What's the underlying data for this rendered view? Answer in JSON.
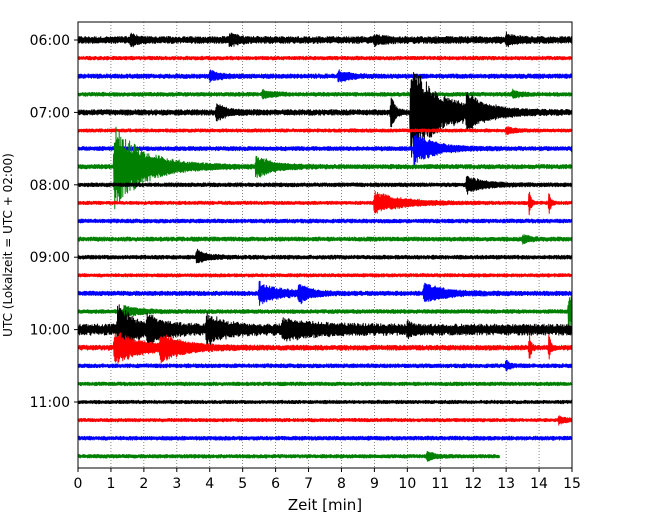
{
  "chart_data": {
    "type": "line",
    "title": "",
    "xlabel": "Zeit  [min]",
    "ylabel": "UTC (Lokalzeit = UTC + 02:00)",
    "xlim": [
      0,
      15
    ],
    "x_ticks": [
      "0",
      "1",
      "2",
      "3",
      "4",
      "5",
      "6",
      "7",
      "8",
      "9",
      "10",
      "11",
      "12",
      "13",
      "14",
      "15"
    ],
    "y_ticks": [
      "06:00",
      "07:00",
      "08:00",
      "09:00",
      "10:00",
      "11:00"
    ],
    "grid": "vertical dotted at each minute",
    "trace_interval_min": 15,
    "start_time": "06:00",
    "series_colors": [
      "#000000",
      "#ff0000",
      "#0000ff",
      "#008000"
    ],
    "traces": [
      {
        "row": 0,
        "color": "#000000",
        "end_min": 15,
        "base": 2.5,
        "events": [
          {
            "t": 1.6,
            "a": 6,
            "d": 0.2
          },
          {
            "t": 4.6,
            "a": 5,
            "d": 0.3
          },
          {
            "t": 9.0,
            "a": 4,
            "d": 0.3
          },
          {
            "t": 13.0,
            "a": 5,
            "d": 0.3
          }
        ]
      },
      {
        "row": 1,
        "color": "#ff0000",
        "end_min": 15,
        "base": 1.3,
        "events": []
      },
      {
        "row": 2,
        "color": "#0000ff",
        "end_min": 15,
        "base": 1.6,
        "events": [
          {
            "t": 4.0,
            "a": 5,
            "d": 0.3
          },
          {
            "t": 7.9,
            "a": 6,
            "d": 0.3
          }
        ]
      },
      {
        "row": 3,
        "color": "#008000",
        "end_min": 15,
        "base": 1.4,
        "events": [
          {
            "t": 5.6,
            "a": 4,
            "d": 0.3
          },
          {
            "t": 13.2,
            "a": 4,
            "d": 0.2
          }
        ]
      },
      {
        "row": 4,
        "color": "#000000",
        "end_min": 15,
        "base": 2.0,
        "events": [
          {
            "t": 4.2,
            "a": 8,
            "d": 0.3
          },
          {
            "t": 9.5,
            "a": 20,
            "d": 0.1
          },
          {
            "t": 10.1,
            "a": 48,
            "d": 0.9
          },
          {
            "t": 11.8,
            "a": 14,
            "d": 0.5
          }
        ]
      },
      {
        "row": 5,
        "color": "#ff0000",
        "end_min": 15,
        "base": 1.2,
        "events": [
          {
            "t": 13.0,
            "a": 4,
            "d": 0.2
          }
        ]
      },
      {
        "row": 6,
        "color": "#0000ff",
        "end_min": 15,
        "base": 1.5,
        "events": [
          {
            "t": 10.2,
            "a": 16,
            "d": 0.6
          },
          {
            "t": 15.0,
            "a": 5,
            "d": 0.2
          }
        ]
      },
      {
        "row": 7,
        "color": "#008000",
        "end_min": 15,
        "base": 1.6,
        "events": [
          {
            "t": 1.1,
            "a": 42,
            "d": 0.9
          },
          {
            "t": 5.4,
            "a": 11,
            "d": 0.5
          }
        ]
      },
      {
        "row": 8,
        "color": "#000000",
        "end_min": 15,
        "base": 1.4,
        "events": [
          {
            "t": 11.8,
            "a": 9,
            "d": 0.5
          }
        ]
      },
      {
        "row": 9,
        "color": "#ff0000",
        "end_min": 15,
        "base": 1.2,
        "events": [
          {
            "t": 9.0,
            "a": 11,
            "d": 0.8
          },
          {
            "t": 13.7,
            "a": 16,
            "d": 0.05
          },
          {
            "t": 14.3,
            "a": 14,
            "d": 0.05
          }
        ]
      },
      {
        "row": 10,
        "color": "#0000ff",
        "end_min": 15,
        "base": 1.4,
        "events": []
      },
      {
        "row": 11,
        "color": "#008000",
        "end_min": 15,
        "base": 1.5,
        "events": [
          {
            "t": 13.5,
            "a": 4,
            "d": 0.2
          }
        ]
      },
      {
        "row": 12,
        "color": "#000000",
        "end_min": 15,
        "base": 1.4,
        "events": [
          {
            "t": 3.6,
            "a": 7,
            "d": 0.3
          }
        ]
      },
      {
        "row": 13,
        "color": "#ff0000",
        "end_min": 15,
        "base": 1.2,
        "events": []
      },
      {
        "row": 14,
        "color": "#0000ff",
        "end_min": 15,
        "base": 1.6,
        "events": [
          {
            "t": 5.5,
            "a": 11,
            "d": 0.6
          },
          {
            "t": 6.7,
            "a": 10,
            "d": 0.3
          },
          {
            "t": 10.5,
            "a": 10,
            "d": 0.6
          }
        ]
      },
      {
        "row": 15,
        "color": "#008000",
        "end_min": 15,
        "base": 1.4,
        "events": [
          {
            "t": 1.4,
            "a": 6,
            "d": 0.4
          },
          {
            "t": 14.9,
            "a": 18,
            "d": 0.3
          }
        ]
      },
      {
        "row": 16,
        "color": "#000000",
        "end_min": 15,
        "base": 4.0,
        "events": [
          {
            "t": 1.2,
            "a": 28,
            "d": 0.4
          },
          {
            "t": 2.1,
            "a": 12,
            "d": 0.5
          },
          {
            "t": 3.9,
            "a": 14,
            "d": 0.5
          },
          {
            "t": 6.2,
            "a": 8,
            "d": 1.0
          },
          {
            "t": 10.0,
            "a": 8,
            "d": 0.1
          }
        ]
      },
      {
        "row": 17,
        "color": "#ff0000",
        "end_min": 15,
        "base": 1.8,
        "events": [
          {
            "t": 1.1,
            "a": 16,
            "d": 0.8
          },
          {
            "t": 2.5,
            "a": 12,
            "d": 0.7
          },
          {
            "t": 13.7,
            "a": 16,
            "d": 0.05
          },
          {
            "t": 14.3,
            "a": 14,
            "d": 0.05
          }
        ]
      },
      {
        "row": 18,
        "color": "#0000ff",
        "end_min": 15,
        "base": 1.4,
        "events": [
          {
            "t": 13.0,
            "a": 6,
            "d": 0.1
          }
        ]
      },
      {
        "row": 19,
        "color": "#008000",
        "end_min": 15,
        "base": 1.3,
        "events": []
      },
      {
        "row": 20,
        "color": "#000000",
        "end_min": 15,
        "base": 1.2,
        "events": []
      },
      {
        "row": 21,
        "color": "#ff0000",
        "end_min": 15,
        "base": 1.2,
        "events": [
          {
            "t": 14.6,
            "a": 4,
            "d": 0.2
          }
        ]
      },
      {
        "row": 22,
        "color": "#0000ff",
        "end_min": 15,
        "base": 1.4,
        "events": []
      },
      {
        "row": 23,
        "color": "#008000",
        "end_min": 12.8,
        "base": 1.3,
        "events": [
          {
            "t": 10.6,
            "a": 5,
            "d": 0.2
          }
        ]
      }
    ]
  }
}
